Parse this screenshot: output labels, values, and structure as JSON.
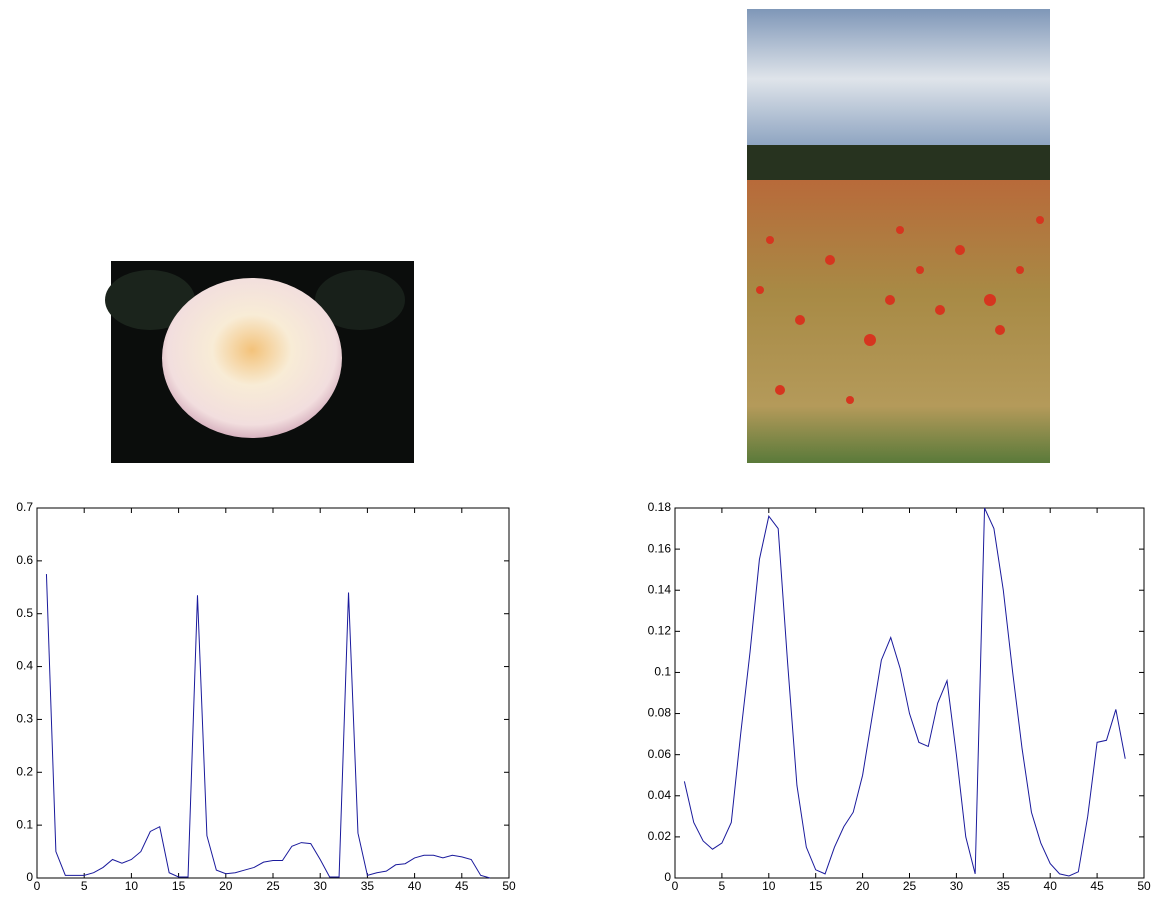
{
  "chart_data": [
    {
      "type": "line",
      "x": [
        1,
        2,
        3,
        4,
        5,
        6,
        7,
        8,
        9,
        10,
        11,
        12,
        13,
        14,
        15,
        16,
        17,
        18,
        19,
        20,
        21,
        22,
        23,
        24,
        25,
        26,
        27,
        28,
        29,
        30,
        31,
        32,
        33,
        34,
        35,
        36,
        37,
        38,
        39,
        40,
        41,
        42,
        43,
        44,
        45,
        46,
        47,
        48
      ],
      "series": [
        {
          "color": "#1a1a9c",
          "values": [
            0.575,
            0.05,
            0.005,
            0.005,
            0.005,
            0.01,
            0.02,
            0.035,
            0.028,
            0.035,
            0.05,
            0.088,
            0.097,
            0.01,
            0.002,
            0.002,
            0.535,
            0.08,
            0.015,
            0.008,
            0.01,
            0.015,
            0.02,
            0.03,
            0.033,
            0.033,
            0.06,
            0.067,
            0.065,
            0.035,
            0.002,
            0.002,
            0.54,
            0.085,
            0.005,
            0.01,
            0.013,
            0.025,
            0.027,
            0.038,
            0.043,
            0.043,
            0.038,
            0.043,
            0.04,
            0.035,
            0.005,
            0
          ]
        }
      ],
      "xlim": [
        0,
        50
      ],
      "xticks": [
        0,
        5,
        10,
        15,
        20,
        25,
        30,
        35,
        40,
        45,
        50
      ],
      "ylim": [
        0,
        0.7
      ],
      "yticks": [
        0,
        0.1,
        0.2,
        0.3,
        0.4,
        0.5,
        0.6,
        0.7
      ]
    },
    {
      "type": "line",
      "x": [
        1,
        2,
        3,
        4,
        5,
        6,
        7,
        8,
        9,
        10,
        11,
        12,
        13,
        14,
        15,
        16,
        17,
        18,
        19,
        20,
        21,
        22,
        23,
        24,
        25,
        26,
        27,
        28,
        29,
        30,
        31,
        32,
        33,
        34,
        35,
        36,
        37,
        38,
        39,
        40,
        41,
        42,
        43,
        44,
        45,
        46,
        47,
        48
      ],
      "series": [
        {
          "color": "#1a1a9c",
          "values": [
            0.047,
            0.027,
            0.018,
            0.014,
            0.017,
            0.027,
            0.07,
            0.11,
            0.155,
            0.176,
            0.17,
            0.105,
            0.045,
            0.015,
            0.004,
            0.002,
            0.015,
            0.025,
            0.032,
            0.05,
            0.078,
            0.106,
            0.117,
            0.102,
            0.08,
            0.066,
            0.064,
            0.085,
            0.096,
            0.06,
            0.02,
            0.002,
            0.18,
            0.17,
            0.14,
            0.1,
            0.063,
            0.032,
            0.017,
            0.007,
            0.002,
            0.001,
            0.003,
            0.03,
            0.066,
            0.067,
            0.082,
            0.058
          ]
        }
      ],
      "xlim": [
        0,
        50
      ],
      "xticks": [
        0,
        5,
        10,
        15,
        20,
        25,
        30,
        35,
        40,
        45,
        50
      ],
      "ylim": [
        0,
        0.18
      ],
      "yticks": [
        0,
        0.02,
        0.04,
        0.06,
        0.08,
        0.1,
        0.12,
        0.14,
        0.16,
        0.18
      ]
    }
  ]
}
